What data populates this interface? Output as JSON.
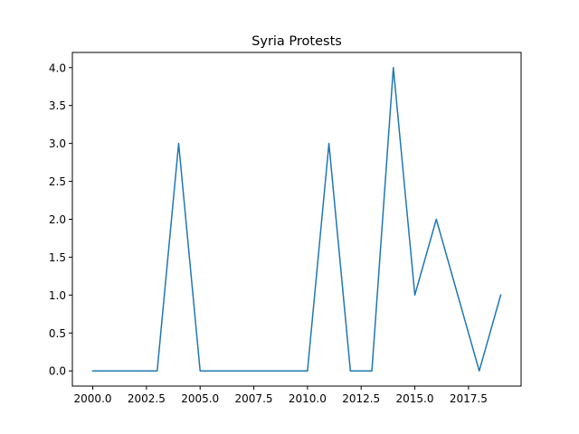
{
  "chart_data": {
    "type": "line",
    "title": "Syria Protests",
    "xlabel": "",
    "ylabel": "",
    "grid": false,
    "xlim": [
      1999.05,
      2019.95
    ],
    "ylim": [
      -0.2,
      4.2
    ],
    "x_ticks": [
      2000.0,
      2002.5,
      2005.0,
      2007.5,
      2010.0,
      2012.5,
      2015.0,
      2017.5
    ],
    "x_tick_labels": [
      "2000.0",
      "2002.5",
      "2005.0",
      "2007.5",
      "2010.0",
      "2012.5",
      "2015.0",
      "2017.5"
    ],
    "y_ticks": [
      0.0,
      0.5,
      1.0,
      1.5,
      2.0,
      2.5,
      3.0,
      3.5,
      4.0
    ],
    "y_tick_labels": [
      "0.0",
      "0.5",
      "1.0",
      "1.5",
      "2.0",
      "2.5",
      "3.0",
      "3.5",
      "4.0"
    ],
    "series": [
      {
        "color": "#1f77b4",
        "x": [
          2000,
          2001,
          2002,
          2003,
          2004,
          2005,
          2006,
          2007,
          2008,
          2009,
          2010,
          2011,
          2012,
          2013,
          2014,
          2015,
          2016,
          2017,
          2018,
          2019
        ],
        "values": [
          0,
          0,
          0,
          0,
          3,
          0,
          0,
          0,
          0,
          0,
          0,
          3,
          0,
          0,
          4,
          1,
          2,
          1,
          0,
          1
        ]
      }
    ]
  }
}
